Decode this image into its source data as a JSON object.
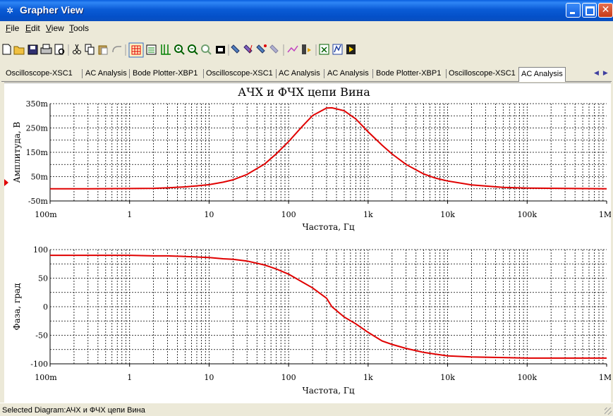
{
  "window": {
    "title": "Grapher View"
  },
  "menu": [
    {
      "id": "file",
      "label": "File"
    },
    {
      "id": "edit",
      "label": "Edit"
    },
    {
      "id": "view",
      "label": "View"
    },
    {
      "id": "tools",
      "label": "Tools"
    }
  ],
  "toolbar": {
    "buttons": [
      "new-icon",
      "open-icon",
      "save-icon",
      "print-icon",
      "print-preview-icon",
      "cut-icon",
      "copy-icon",
      "paste-icon",
      "undo-icon",
      "grid-icon",
      "legend-icon",
      "cursors-icon",
      "zoom-in-icon",
      "zoom-out-icon",
      "zoom-full-icon",
      "reverse-colors-icon",
      "properties-icon",
      "overlay-traces-icon",
      "select-marks-icon",
      "clear-marks-icon",
      "add-text-icon",
      "show-cursors-icon",
      "export-excel-icon",
      "export-mathcad-icon",
      "export-lvm-icon"
    ]
  },
  "tabs": [
    {
      "label": "Oscilloscope-XSC1"
    },
    {
      "label": "AC Analysis"
    },
    {
      "label": "Bode Plotter-XBP1"
    },
    {
      "label": "Oscilloscope-XSC1"
    },
    {
      "label": "AC Analysis"
    },
    {
      "label": "AC Analysis"
    },
    {
      "label": "Bode Plotter-XBP1"
    },
    {
      "label": "Oscilloscope-XSC1"
    },
    {
      "label": "AC Analysis",
      "active": true
    }
  ],
  "chart_title": "АЧХ и ФЧХ цепи Вина",
  "chart_data": [
    {
      "type": "line",
      "title": "",
      "xlabel": "Частота, Гц",
      "ylabel": "Амплитуда, В",
      "xscale": "log",
      "xlim": [
        0.1,
        1000000
      ],
      "ylim": [
        -0.05,
        0.35
      ],
      "xticks": [
        "100m",
        "1",
        "10",
        "100",
        "1k",
        "10k",
        "100k",
        "1M"
      ],
      "yticks": [
        "-50m",
        "50m",
        "150m",
        "250m",
        "350m"
      ],
      "grid": true,
      "series": [
        {
          "color": "#E00000",
          "x": [
            0.1,
            0.3,
            1,
            2,
            3,
            5,
            7,
            10,
            15,
            20,
            30,
            50,
            70,
            100,
            150,
            200,
            300,
            350,
            500,
            700,
            1000,
            1500,
            2000,
            3000,
            5000,
            7000,
            10000,
            20000,
            50000,
            100000,
            1000000
          ],
          "y": [
            0.0,
            0.0,
            0.001,
            0.002,
            0.004,
            0.008,
            0.012,
            0.017,
            0.027,
            0.037,
            0.059,
            0.102,
            0.144,
            0.194,
            0.258,
            0.301,
            0.332,
            0.333,
            0.321,
            0.287,
            0.234,
            0.179,
            0.143,
            0.1,
            0.061,
            0.044,
            0.032,
            0.016,
            0.006,
            0.003,
            0.0
          ]
        }
      ]
    },
    {
      "type": "line",
      "title": "",
      "xlabel": "Частота, Гц",
      "ylabel": "Фаза, град",
      "xscale": "log",
      "xlim": [
        0.1,
        1000000
      ],
      "ylim": [
        -100,
        100
      ],
      "xticks": [
        "100m",
        "1",
        "10",
        "100",
        "1k",
        "10k",
        "100k",
        "1M"
      ],
      "yticks": [
        "-100",
        "-50",
        "0",
        "50",
        "100"
      ],
      "grid": true,
      "series": [
        {
          "color": "#E00000",
          "x": [
            0.1,
            0.3,
            1,
            2,
            3,
            5,
            7,
            10,
            15,
            20,
            30,
            50,
            70,
            100,
            150,
            200,
            300,
            350,
            500,
            700,
            1000,
            1500,
            2000,
            3000,
            5000,
            7000,
            10000,
            20000,
            50000,
            100000,
            1000000
          ],
          "y": [
            90,
            90,
            90,
            89,
            89,
            88,
            87,
            86,
            84,
            83,
            80,
            73,
            66,
            57,
            43,
            33,
            15,
            0,
            -18,
            -30,
            -45,
            -60,
            -66,
            -73,
            -80,
            -83,
            -86,
            -88,
            -89,
            -90,
            -90
          ]
        }
      ]
    }
  ],
  "status": {
    "text": "Selected Diagram:АЧХ и ФЧХ цепи Вина"
  }
}
